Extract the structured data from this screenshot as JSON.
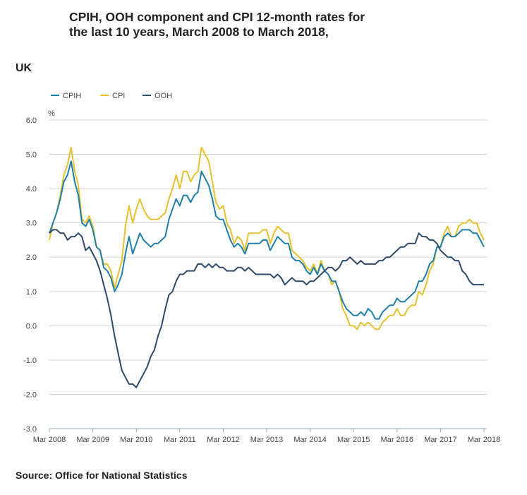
{
  "chart_data": {
    "type": "line",
    "title": "CPIH, OOH component and CPI 12-month rates for the last 10 years, March 2008 to March 2018,",
    "subtitle": "UK",
    "ylabel": "%",
    "ylim": [
      -3,
      6
    ],
    "yticks": [
      "6.0",
      "5.0",
      "4.0",
      "3.0",
      "2.0",
      "1.0",
      "0.0",
      "-1.0",
      "-2.0",
      "-3.0"
    ],
    "ytick_values": [
      6,
      5,
      4,
      3,
      2,
      1,
      0,
      -1,
      -2,
      -3
    ],
    "xticks": [
      "Mar 2008",
      "Mar 2009",
      "Mar 2010",
      "Mar 2011",
      "Mar 2012",
      "Mar 2013",
      "Mar 2014",
      "Mar 2015",
      "Mar 2016",
      "Mar 2017",
      "Mar 2018"
    ],
    "x_start": "Mar 2008",
    "x_end": "Mar 2018",
    "frequency": "monthly",
    "grid": true,
    "legend_position": "top-left",
    "series": [
      {
        "name": "CPIH",
        "color": "#1f7fa8",
        "values": [
          2.7,
          3.0,
          3.3,
          3.7,
          4.2,
          4.4,
          4.8,
          4.2,
          3.8,
          3.0,
          2.9,
          3.1,
          2.8,
          2.3,
          2.2,
          1.7,
          1.6,
          1.4,
          1.0,
          1.2,
          1.5,
          2.1,
          2.6,
          2.1,
          2.4,
          2.7,
          2.5,
          2.4,
          2.3,
          2.4,
          2.4,
          2.5,
          2.6,
          3.1,
          3.4,
          3.7,
          3.5,
          3.8,
          3.8,
          3.6,
          3.8,
          3.9,
          4.5,
          4.3,
          4.1,
          3.7,
          3.2,
          3.1,
          3.1,
          2.8,
          2.5,
          2.3,
          2.4,
          2.3,
          2.1,
          2.4,
          2.4,
          2.4,
          2.4,
          2.5,
          2.5,
          2.2,
          2.4,
          2.6,
          2.5,
          2.4,
          2.4,
          2.0,
          1.9,
          1.9,
          1.8,
          1.6,
          1.5,
          1.7,
          1.5,
          1.8,
          1.6,
          1.5,
          1.3,
          1.3,
          1.0,
          0.7,
          0.5,
          0.4,
          0.3,
          0.3,
          0.4,
          0.3,
          0.5,
          0.4,
          0.2,
          0.2,
          0.4,
          0.5,
          0.6,
          0.6,
          0.8,
          0.7,
          0.7,
          0.8,
          0.9,
          1.0,
          1.3,
          1.3,
          1.5,
          1.8,
          1.9,
          2.3,
          2.3,
          2.6,
          2.7,
          2.6,
          2.6,
          2.7,
          2.8,
          2.8,
          2.8,
          2.7,
          2.7,
          2.5,
          2.3
        ]
      },
      {
        "name": "CPI",
        "color": "#e6c12f",
        "values": [
          2.5,
          3.0,
          3.3,
          3.8,
          4.4,
          4.7,
          5.2,
          4.5,
          4.1,
          3.1,
          3.0,
          3.2,
          2.9,
          2.3,
          2.2,
          1.8,
          1.8,
          1.6,
          1.1,
          1.5,
          1.9,
          2.9,
          3.5,
          3.0,
          3.4,
          3.7,
          3.4,
          3.2,
          3.1,
          3.1,
          3.1,
          3.2,
          3.3,
          3.7,
          4.0,
          4.4,
          4.0,
          4.5,
          4.5,
          4.2,
          4.4,
          4.5,
          5.2,
          5.0,
          4.8,
          4.2,
          3.6,
          3.4,
          3.5,
          3.0,
          2.8,
          2.4,
          2.6,
          2.5,
          2.2,
          2.7,
          2.7,
          2.7,
          2.7,
          2.8,
          2.8,
          2.4,
          2.7,
          2.9,
          2.8,
          2.7,
          2.7,
          2.2,
          2.1,
          2.0,
          1.9,
          1.7,
          1.6,
          1.8,
          1.5,
          1.9,
          1.6,
          1.5,
          1.2,
          1.3,
          1.0,
          0.5,
          0.3,
          0.0,
          0.0,
          -0.1,
          0.1,
          0.0,
          0.1,
          0.0,
          -0.1,
          -0.1,
          0.1,
          0.2,
          0.3,
          0.3,
          0.5,
          0.3,
          0.3,
          0.5,
          0.6,
          0.6,
          1.0,
          0.9,
          1.2,
          1.6,
          1.8,
          2.3,
          2.3,
          2.7,
          2.9,
          2.6,
          2.6,
          2.9,
          3.0,
          3.0,
          3.1,
          3.0,
          3.0,
          2.7,
          2.5
        ]
      },
      {
        "name": "OOH",
        "color": "#2e4a68",
        "values": [
          2.7,
          2.8,
          2.8,
          2.7,
          2.7,
          2.5,
          2.6,
          2.6,
          2.7,
          2.6,
          2.2,
          2.3,
          2.1,
          1.9,
          1.6,
          1.2,
          0.8,
          0.3,
          -0.3,
          -0.8,
          -1.3,
          -1.5,
          -1.7,
          -1.7,
          -1.8,
          -1.6,
          -1.4,
          -1.2,
          -0.9,
          -0.7,
          -0.3,
          0.0,
          0.5,
          0.9,
          1.0,
          1.3,
          1.5,
          1.5,
          1.6,
          1.6,
          1.6,
          1.8,
          1.8,
          1.7,
          1.8,
          1.7,
          1.8,
          1.7,
          1.7,
          1.6,
          1.6,
          1.6,
          1.7,
          1.7,
          1.6,
          1.7,
          1.6,
          1.5,
          1.5,
          1.5,
          1.5,
          1.5,
          1.4,
          1.5,
          1.4,
          1.2,
          1.3,
          1.4,
          1.3,
          1.3,
          1.3,
          1.2,
          1.3,
          1.3,
          1.4,
          1.5,
          1.6,
          1.7,
          1.7,
          1.6,
          1.7,
          1.9,
          1.9,
          2.0,
          1.9,
          1.8,
          1.9,
          1.8,
          1.8,
          1.8,
          1.8,
          1.9,
          1.9,
          2.0,
          2.0,
          2.1,
          2.2,
          2.3,
          2.3,
          2.4,
          2.4,
          2.4,
          2.7,
          2.6,
          2.6,
          2.5,
          2.5,
          2.4,
          2.2,
          2.1,
          2.0,
          2.0,
          1.9,
          1.9,
          1.6,
          1.5,
          1.3,
          1.2,
          1.2,
          1.2,
          1.2
        ]
      }
    ],
    "source": "Source: Office for National Statistics"
  }
}
